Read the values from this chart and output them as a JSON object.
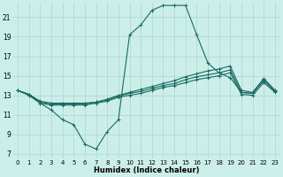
{
  "xlabel": "Humidex (Indice chaleur)",
  "xlim": [
    -0.5,
    23.5
  ],
  "ylim": [
    6.5,
    22.5
  ],
  "yticks": [
    7,
    9,
    11,
    13,
    15,
    17,
    19,
    21
  ],
  "xtick_labels": [
    "0",
    "1",
    "2",
    "3",
    "4",
    "5",
    "6",
    "7",
    "8",
    "9",
    "10",
    "11",
    "12",
    "13",
    "14",
    "15",
    "16",
    "17",
    "18",
    "19",
    "20",
    "21",
    "22",
    "23"
  ],
  "bg_color": "#cceee9",
  "grid_color": "#aad6d0",
  "line_color": "#1a6b62",
  "line_main": [
    13.5,
    13.0,
    12.2,
    11.5,
    10.5,
    10.0,
    8.0,
    7.5,
    9.3,
    10.5,
    19.2,
    20.2,
    21.7,
    22.2,
    22.2,
    22.2,
    19.2,
    16.3,
    15.3,
    14.8,
    13.3,
    13.2,
    14.7,
    13.5
  ],
  "line_a": [
    13.5,
    13.1,
    12.4,
    12.2,
    12.2,
    12.2,
    12.2,
    12.3,
    12.6,
    13.0,
    13.3,
    13.6,
    13.9,
    14.2,
    14.5,
    14.9,
    15.2,
    15.5,
    15.7,
    16.0,
    13.5,
    13.3,
    14.7,
    13.5
  ],
  "line_b": [
    13.5,
    13.1,
    12.3,
    12.1,
    12.1,
    12.1,
    12.1,
    12.3,
    12.5,
    12.9,
    13.2,
    13.4,
    13.7,
    14.0,
    14.2,
    14.6,
    14.9,
    15.1,
    15.3,
    15.6,
    13.3,
    13.2,
    14.5,
    13.4
  ],
  "line_c": [
    13.5,
    13.0,
    12.2,
    12.0,
    12.0,
    12.0,
    12.0,
    12.2,
    12.4,
    12.8,
    13.0,
    13.2,
    13.5,
    13.8,
    14.0,
    14.3,
    14.6,
    14.8,
    15.0,
    15.3,
    13.1,
    13.0,
    14.3,
    13.3
  ]
}
